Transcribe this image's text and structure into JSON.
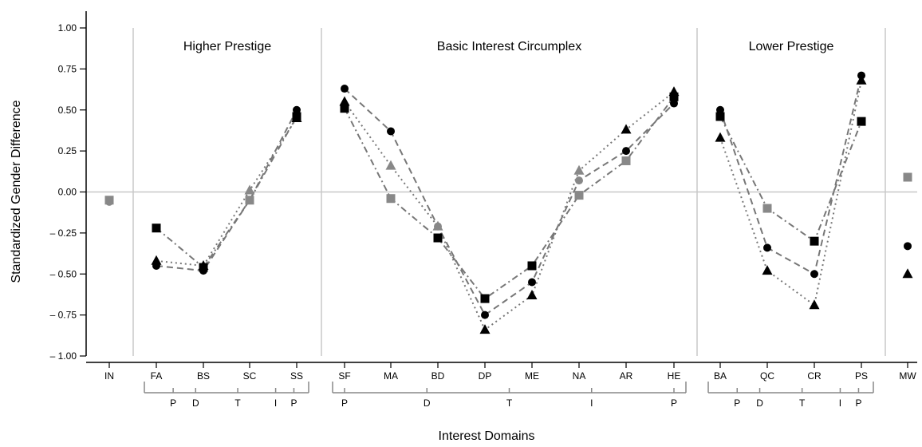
{
  "chart_data": {
    "type": "scatter",
    "xlabel": "Interest Domains",
    "ylabel": "Standardized Gender Difference",
    "ylim": [
      -1.0,
      1.0
    ],
    "yticks": [
      "1.00",
      "0.75",
      "0.50",
      "0.25",
      "0.00",
      "– 0.25",
      "– 0.50",
      "– 0.75",
      "– 1.00"
    ],
    "ytick_values": [
      1.0,
      0.75,
      0.5,
      0.25,
      0.0,
      -0.25,
      -0.5,
      -0.75,
      -1.0
    ],
    "zero_line": true,
    "categories": [
      "IN",
      "FA",
      "BS",
      "SC",
      "SS",
      "SF",
      "MA",
      "BD",
      "DP",
      "ME",
      "NA",
      "AR",
      "HE",
      "BA",
      "QC",
      "CR",
      "PS",
      "MW"
    ],
    "panels": [
      {
        "title": "Higher Prestige",
        "categories": [
          "FA",
          "BS",
          "SC",
          "SS"
        ]
      },
      {
        "title": "Basic Interest Circumplex",
        "categories": [
          "SF",
          "MA",
          "BD",
          "DP",
          "ME",
          "NA",
          "AR",
          "HE"
        ]
      },
      {
        "title": "Lower Prestige",
        "categories": [
          "BA",
          "QC",
          "CR",
          "PS"
        ]
      }
    ],
    "riasec_brackets": [
      {
        "from": "FA",
        "to": "SS",
        "labels": [
          [
            "P",
            0.12
          ],
          [
            "D",
            0.28
          ],
          [
            "T",
            0.58
          ],
          [
            "I",
            0.85
          ],
          [
            "P",
            0.98
          ]
        ]
      },
      {
        "from": "SF",
        "to": "HE",
        "labels": [
          [
            "P",
            0.0
          ],
          [
            "D",
            0.25
          ],
          [
            "T",
            0.5
          ],
          [
            "I",
            0.75
          ],
          [
            "P",
            1.0
          ]
        ]
      },
      {
        "from": "BA",
        "to": "PS",
        "labels": [
          [
            "P",
            0.12
          ],
          [
            "D",
            0.28
          ],
          [
            "T",
            0.58
          ],
          [
            "I",
            0.85
          ],
          [
            "P",
            0.98
          ]
        ]
      }
    ],
    "series": [
      {
        "marker": "circle",
        "color": "#000000",
        "line": "dashed",
        "values": {
          "FA": -0.45,
          "BS": -0.48,
          "SC": -0.05,
          "SS": 0.5,
          "SF": 0.63,
          "MA": 0.37,
          "BD": -0.21,
          "DP": -0.75,
          "ME": -0.55,
          "NA": 0.07,
          "AR": 0.25,
          "HE": 0.54,
          "BA": 0.5,
          "QC": -0.34,
          "CR": -0.5,
          "PS": 0.71,
          "MW": -0.33
        }
      },
      {
        "marker": "triangle",
        "color": "#000000",
        "line": "dotted",
        "values": {
          "FA": -0.42,
          "BS": -0.45,
          "SC": 0.01,
          "SS": 0.45,
          "SF": 0.55,
          "MA": 0.16,
          "BD": -0.21,
          "DP": -0.84,
          "ME": -0.63,
          "NA": 0.13,
          "AR": 0.38,
          "HE": 0.61,
          "BA": 0.33,
          "QC": -0.48,
          "CR": -0.69,
          "PS": 0.68,
          "MW": -0.5
        }
      },
      {
        "marker": "square",
        "color": "#000000",
        "line": "dashdot",
        "values": {
          "FA": -0.22,
          "BS": -0.46,
          "SC": -0.05,
          "SS": 0.46,
          "SF": 0.51,
          "MA": -0.04,
          "BD": -0.28,
          "DP": -0.65,
          "ME": -0.45,
          "NA": -0.02,
          "AR": 0.19,
          "HE": 0.58,
          "BA": 0.46,
          "QC": -0.1,
          "CR": -0.3,
          "PS": 0.43,
          "MW": 0.09
        }
      }
    ],
    "gray_markers": [
      {
        "marker": "circle",
        "category": "IN",
        "value": -0.06
      },
      {
        "marker": "square",
        "category": "IN",
        "value": -0.05
      },
      {
        "marker": "triangle",
        "category": "SC",
        "value": 0.01
      },
      {
        "marker": "square",
        "category": "SC",
        "value": -0.05
      },
      {
        "marker": "triangle",
        "category": "MA",
        "value": 0.16
      },
      {
        "marker": "square",
        "category": "MA",
        "value": -0.04
      },
      {
        "marker": "circle",
        "category": "BD",
        "value": -0.21
      },
      {
        "marker": "triangle",
        "category": "BD",
        "value": -0.21
      },
      {
        "marker": "circle",
        "category": "NA",
        "value": 0.07
      },
      {
        "marker": "triangle",
        "category": "NA",
        "value": 0.13
      },
      {
        "marker": "square",
        "category": "NA",
        "value": -0.02
      },
      {
        "marker": "square",
        "category": "AR",
        "value": 0.19
      },
      {
        "marker": "square",
        "category": "QC",
        "value": -0.1
      },
      {
        "marker": "square",
        "category": "MW",
        "value": 0.09
      }
    ]
  }
}
